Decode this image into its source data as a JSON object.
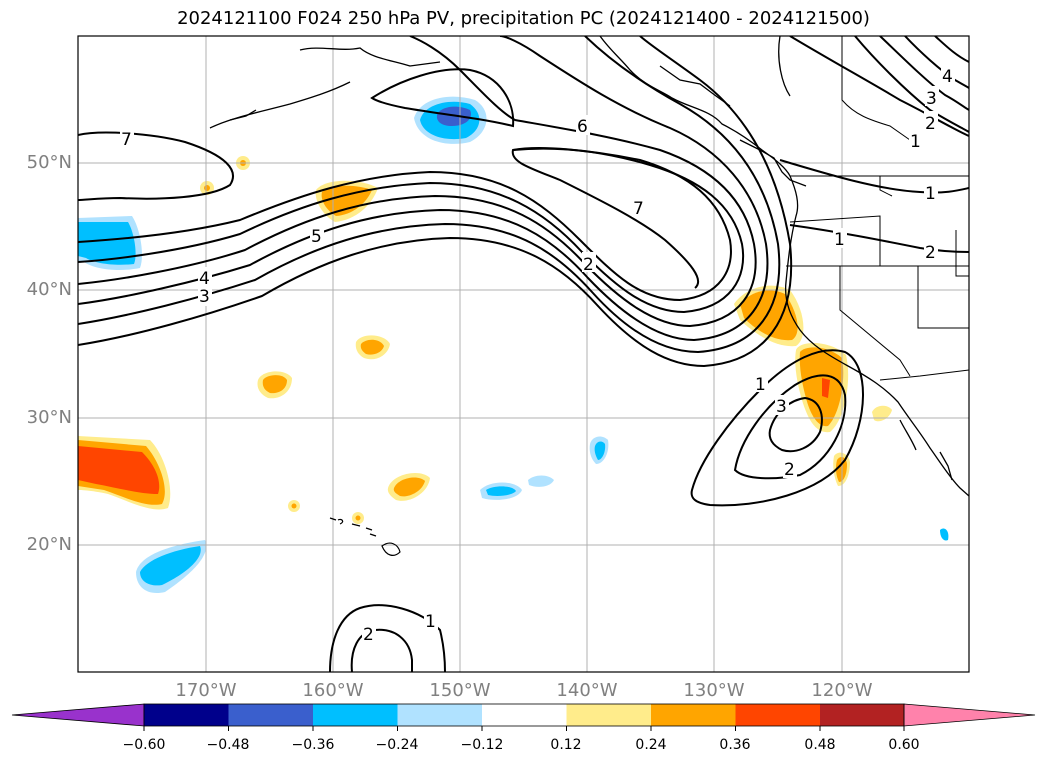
{
  "title": "2024121100 F024 250 hPa PV, precipitation PC (2024121400 - 2024121500)",
  "latitude_labels": [
    "50°N",
    "40°N",
    "30°N",
    "20°N"
  ],
  "longitude_labels": [
    "170°W",
    "160°W",
    "150°W",
    "140°W",
    "130°W",
    "120°W"
  ],
  "colorbar": {
    "tick_labels": [
      "−0.60",
      "−0.48",
      "−0.36",
      "−0.24",
      "−0.12",
      "0.12",
      "0.24",
      "0.36",
      "0.48",
      "0.60"
    ],
    "colors": [
      "#9932cc",
      "#00008b",
      "#3a5fcd",
      "#00bfff",
      "#b0e2ff",
      "#ffffff",
      "#ffec8b",
      "#ffa500",
      "#ff4500",
      "#b22222",
      "#ff82ab"
    ]
  },
  "contour_labels": [
    "7",
    "6",
    "5",
    "4",
    "3",
    "7",
    "2",
    "1",
    "2",
    "1",
    "3",
    "2",
    "2",
    "1",
    "4",
    "3",
    "2",
    "1",
    "1",
    "2"
  ],
  "colors": {
    "gridline": "#b0b0b0",
    "contour": "#000000"
  }
}
